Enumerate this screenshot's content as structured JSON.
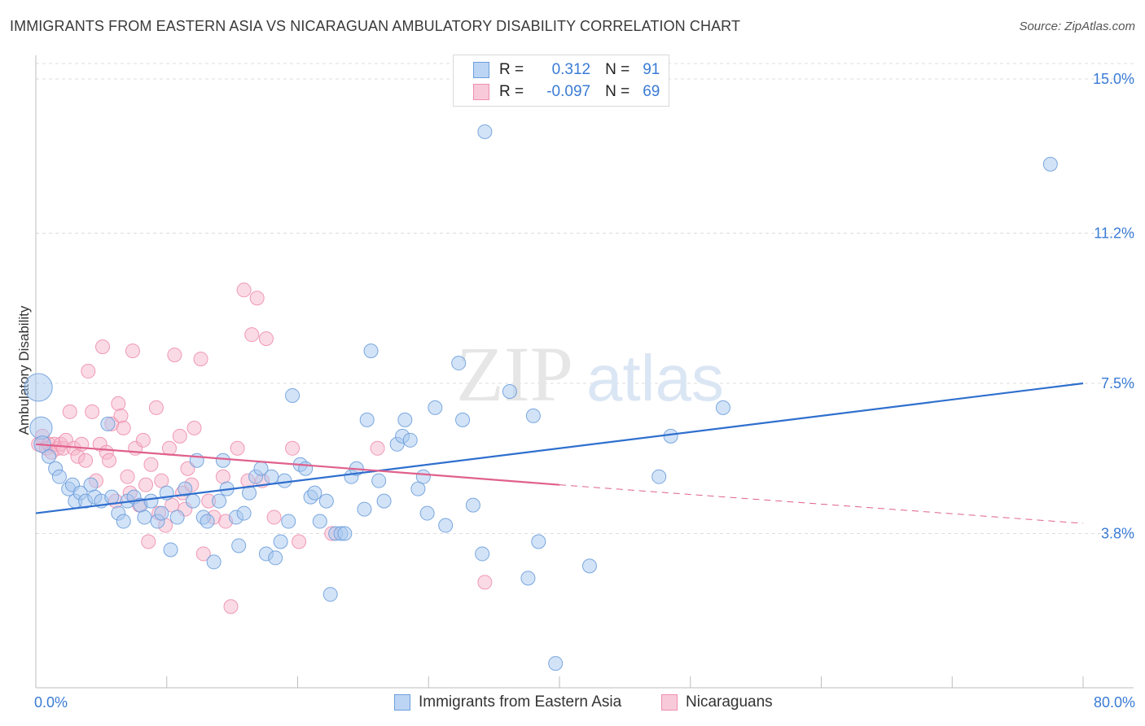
{
  "header": {
    "title": "IMMIGRANTS FROM EASTERN ASIA VS NICARAGUAN AMBULATORY DISABILITY CORRELATION CHART",
    "source": "Source: ZipAtlas.com"
  },
  "watermark": {
    "part1": "ZIP",
    "part2": "atlas"
  },
  "legend_top": {
    "rows": [
      {
        "r_label": "R =",
        "r_value": "0.312",
        "n_label": "N =",
        "n_value": "91"
      },
      {
        "r_label": "R =",
        "r_value": "-0.097",
        "n_label": "N =",
        "n_value": "69"
      }
    ]
  },
  "legend_bottom": {
    "items": [
      {
        "label": "Immigrants from Eastern Asia"
      },
      {
        "label": "Nicaraguans"
      }
    ]
  },
  "colors": {
    "blue_fill": "#a8c8f0",
    "blue_stroke": "#6d9fdc",
    "blue_line": "#2f6fce",
    "pink_fill": "#f5b8cc",
    "pink_stroke": "#ee8fae",
    "pink_line": "#e0608c",
    "tick_text": "#3a7bd5",
    "grid": "#dcdcdc"
  },
  "chart_data": {
    "type": "scatter",
    "title": "IMMIGRANTS FROM EASTERN ASIA VS NICARAGUAN AMBULATORY DISABILITY CORRELATION CHART",
    "xlabel": "",
    "ylabel": "Ambulatory Disability",
    "xlim": [
      0,
      80
    ],
    "ylim": [
      0,
      16
    ],
    "x_tick_labels": [
      "0.0%",
      "80.0%"
    ],
    "y_ticks": [
      3.8,
      7.5,
      11.2,
      15.0
    ],
    "y_tick_labels": [
      "3.8%",
      "7.5%",
      "11.2%",
      "15.0%"
    ],
    "grid": true,
    "series": [
      {
        "name": "Immigrants from Eastern Asia",
        "r": 0.312,
        "n": 91,
        "trend": {
          "x": [
            0,
            80
          ],
          "y": [
            4.3,
            7.5
          ]
        },
        "points": [
          [
            0.2,
            7.4,
            2.0
          ],
          [
            0.4,
            6.4,
            1.6
          ],
          [
            0.5,
            6.0,
            1.2
          ],
          [
            1.0,
            5.7,
            1.0
          ],
          [
            1.5,
            5.4,
            1.0
          ],
          [
            1.8,
            5.2,
            1.0
          ],
          [
            2.5,
            4.9,
            1.0
          ],
          [
            2.8,
            5.0,
            1.0
          ],
          [
            3.0,
            4.6,
            1.0
          ],
          [
            3.4,
            4.8,
            1.0
          ],
          [
            3.8,
            4.6,
            1.0
          ],
          [
            4.2,
            5.0,
            1.0
          ],
          [
            4.5,
            4.7,
            1.0
          ],
          [
            5.0,
            4.6,
            1.0
          ],
          [
            5.5,
            6.5,
            1.0
          ],
          [
            5.8,
            4.7,
            1.0
          ],
          [
            6.3,
            4.3,
            1.0
          ],
          [
            6.7,
            4.1,
            1.0
          ],
          [
            7.0,
            4.6,
            1.0
          ],
          [
            7.5,
            4.7,
            1.0
          ],
          [
            8.0,
            4.5,
            1.0
          ],
          [
            8.3,
            4.2,
            1.0
          ],
          [
            8.8,
            4.6,
            1.0
          ],
          [
            9.3,
            4.1,
            1.0
          ],
          [
            9.6,
            4.3,
            1.0
          ],
          [
            10.0,
            4.8,
            1.0
          ],
          [
            10.3,
            3.4,
            1.0
          ],
          [
            10.8,
            4.2,
            1.0
          ],
          [
            11.4,
            4.9,
            1.0
          ],
          [
            12.0,
            4.6,
            1.0
          ],
          [
            12.3,
            5.6,
            1.0
          ],
          [
            12.8,
            4.2,
            1.0
          ],
          [
            13.1,
            4.1,
            1.0
          ],
          [
            13.6,
            3.1,
            1.0
          ],
          [
            14.0,
            4.6,
            1.0
          ],
          [
            14.3,
            5.6,
            1.0
          ],
          [
            14.6,
            4.9,
            1.0
          ],
          [
            15.3,
            4.2,
            1.0
          ],
          [
            15.5,
            3.5,
            1.0
          ],
          [
            15.9,
            4.3,
            1.0
          ],
          [
            16.3,
            4.8,
            1.0
          ],
          [
            16.8,
            5.2,
            1.0
          ],
          [
            17.2,
            5.4,
            1.0
          ],
          [
            17.6,
            3.3,
            1.0
          ],
          [
            18.0,
            5.2,
            1.0
          ],
          [
            18.3,
            3.2,
            1.0
          ],
          [
            18.7,
            3.6,
            1.0
          ],
          [
            19.0,
            5.1,
            1.0
          ],
          [
            19.3,
            4.1,
            1.0
          ],
          [
            19.6,
            7.2,
            1.0
          ],
          [
            20.2,
            5.5,
            1.0
          ],
          [
            20.6,
            5.4,
            1.0
          ],
          [
            21.0,
            4.7,
            1.0
          ],
          [
            21.3,
            4.8,
            1.0
          ],
          [
            21.7,
            4.1,
            1.0
          ],
          [
            22.2,
            4.6,
            1.0
          ],
          [
            22.5,
            2.3,
            1.0
          ],
          [
            22.9,
            3.8,
            1.0
          ],
          [
            23.3,
            3.8,
            1.0
          ],
          [
            23.6,
            3.8,
            1.0
          ],
          [
            24.1,
            5.2,
            1.0
          ],
          [
            24.5,
            5.4,
            1.0
          ],
          [
            25.1,
            4.4,
            1.0
          ],
          [
            25.3,
            6.6,
            1.0
          ],
          [
            25.6,
            8.3,
            1.0
          ],
          [
            26.2,
            5.1,
            1.0
          ],
          [
            26.6,
            4.6,
            1.0
          ],
          [
            27.6,
            6.0,
            1.0
          ],
          [
            28.0,
            6.2,
            1.0
          ],
          [
            28.2,
            6.6,
            1.0
          ],
          [
            28.6,
            6.1,
            1.0
          ],
          [
            29.2,
            4.9,
            1.0
          ],
          [
            29.6,
            5.2,
            1.0
          ],
          [
            29.9,
            4.3,
            1.0
          ],
          [
            30.5,
            6.9,
            1.0
          ],
          [
            31.3,
            4.0,
            1.0
          ],
          [
            32.3,
            8.0,
            1.0
          ],
          [
            32.6,
            6.6,
            1.0
          ],
          [
            33.4,
            4.5,
            1.0
          ],
          [
            34.1,
            3.3,
            1.0
          ],
          [
            34.3,
            13.7,
            1.0
          ],
          [
            36.2,
            7.3,
            1.0
          ],
          [
            37.6,
            2.7,
            1.0
          ],
          [
            38.0,
            6.7,
            1.0
          ],
          [
            38.4,
            3.6,
            1.0
          ],
          [
            39.7,
            0.6,
            1.0
          ],
          [
            42.3,
            3.0,
            1.0
          ],
          [
            47.6,
            5.2,
            1.0
          ],
          [
            48.5,
            6.2,
            1.0
          ],
          [
            52.5,
            6.9,
            1.0
          ],
          [
            77.5,
            12.9,
            1.0
          ]
        ]
      },
      {
        "name": "Nicaraguans",
        "r": -0.097,
        "n": 69,
        "trend": {
          "x": [
            0,
            40
          ],
          "y": [
            6.0,
            5.0
          ]
        },
        "trend_dashed": {
          "x": [
            40,
            80
          ],
          "y": [
            5.0,
            4.05
          ]
        },
        "points": [
          [
            0.2,
            6.0,
            1.0
          ],
          [
            0.5,
            6.2,
            1.0
          ],
          [
            0.8,
            5.9,
            1.0
          ],
          [
            1.0,
            6.0,
            1.0
          ],
          [
            1.2,
            5.8,
            1.0
          ],
          [
            1.4,
            6.0,
            1.0
          ],
          [
            1.7,
            5.9,
            1.0
          ],
          [
            1.9,
            6.0,
            1.0
          ],
          [
            2.1,
            5.9,
            1.0
          ],
          [
            2.3,
            6.1,
            1.0
          ],
          [
            2.6,
            6.8,
            1.0
          ],
          [
            2.9,
            5.9,
            1.0
          ],
          [
            3.2,
            5.7,
            1.0
          ],
          [
            3.5,
            6.0,
            1.0
          ],
          [
            3.8,
            5.6,
            1.0
          ],
          [
            4.0,
            7.8,
            1.0
          ],
          [
            4.3,
            6.8,
            1.0
          ],
          [
            4.6,
            5.1,
            1.0
          ],
          [
            4.9,
            6.0,
            1.0
          ],
          [
            5.1,
            8.4,
            1.0
          ],
          [
            5.4,
            5.8,
            1.0
          ],
          [
            5.6,
            5.6,
            1.0
          ],
          [
            5.8,
            6.5,
            1.0
          ],
          [
            6.1,
            4.6,
            1.0
          ],
          [
            6.3,
            7.0,
            1.0
          ],
          [
            6.5,
            6.7,
            1.0
          ],
          [
            6.7,
            6.4,
            1.0
          ],
          [
            7.0,
            5.2,
            1.0
          ],
          [
            7.2,
            4.8,
            1.0
          ],
          [
            7.4,
            8.3,
            1.0
          ],
          [
            7.6,
            5.9,
            1.0
          ],
          [
            7.9,
            4.5,
            1.0
          ],
          [
            8.2,
            6.1,
            1.0
          ],
          [
            8.4,
            5.0,
            1.0
          ],
          [
            8.6,
            3.6,
            1.0
          ],
          [
            8.8,
            5.5,
            1.0
          ],
          [
            9.2,
            6.9,
            1.0
          ],
          [
            9.4,
            4.3,
            1.0
          ],
          [
            9.6,
            5.1,
            1.0
          ],
          [
            9.9,
            4.0,
            1.0
          ],
          [
            10.2,
            5.9,
            1.0
          ],
          [
            10.4,
            4.5,
            1.0
          ],
          [
            10.6,
            8.2,
            1.0
          ],
          [
            11.0,
            6.2,
            1.0
          ],
          [
            11.2,
            4.8,
            1.0
          ],
          [
            11.4,
            4.4,
            1.0
          ],
          [
            11.6,
            5.4,
            1.0
          ],
          [
            11.9,
            5.0,
            1.0
          ],
          [
            12.1,
            6.4,
            1.0
          ],
          [
            12.6,
            8.1,
            1.0
          ],
          [
            12.8,
            3.3,
            1.0
          ],
          [
            13.2,
            4.6,
            1.0
          ],
          [
            13.6,
            4.2,
            1.0
          ],
          [
            14.3,
            5.2,
            1.0
          ],
          [
            14.5,
            4.1,
            1.0
          ],
          [
            14.9,
            2.0,
            1.0
          ],
          [
            15.4,
            5.9,
            1.0
          ],
          [
            15.9,
            9.8,
            1.0
          ],
          [
            16.2,
            5.1,
            1.0
          ],
          [
            16.5,
            8.7,
            1.0
          ],
          [
            16.9,
            9.6,
            1.0
          ],
          [
            17.3,
            5.1,
            1.0
          ],
          [
            17.6,
            8.6,
            1.0
          ],
          [
            18.2,
            4.2,
            1.0
          ],
          [
            19.6,
            5.9,
            1.0
          ],
          [
            20.1,
            3.6,
            1.0
          ],
          [
            22.6,
            3.8,
            1.0
          ],
          [
            26.1,
            5.9,
            1.0
          ],
          [
            34.3,
            2.6,
            1.0
          ]
        ]
      }
    ]
  }
}
